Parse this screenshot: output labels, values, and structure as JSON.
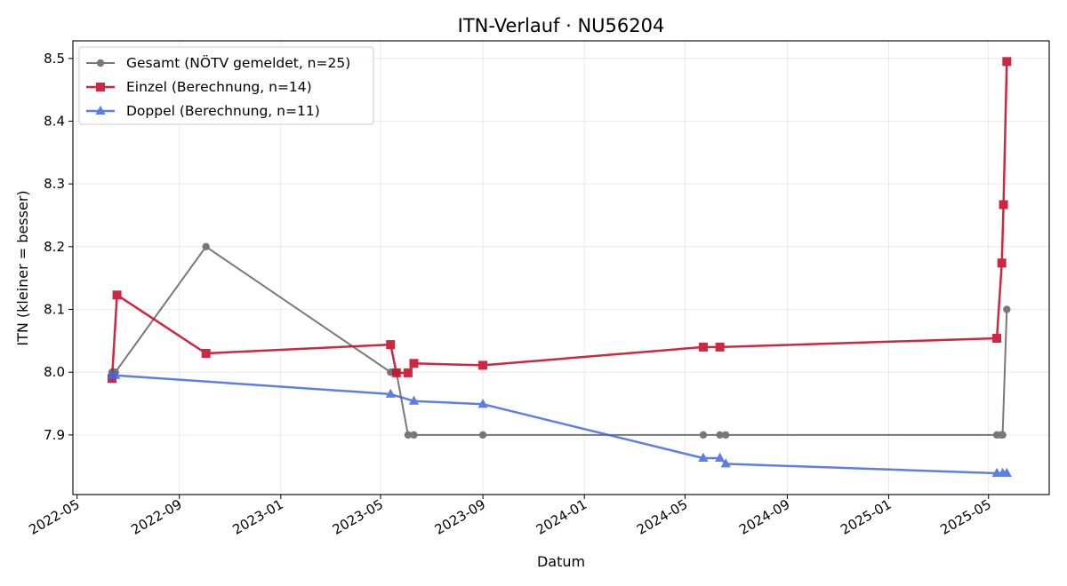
{
  "chart_data": {
    "type": "line",
    "title": "ITN-Verlauf · NU56204",
    "xlabel": "Datum",
    "ylabel": "ITN  (kleiner = besser)",
    "x_type": "date",
    "xlim": [
      "2022-04-26",
      "2025-07-13"
    ],
    "ylim": [
      7.805,
      8.528
    ],
    "grid": true,
    "legend_position": "top-left",
    "x_ticks": [
      "2022-05",
      "2022-09",
      "2023-01",
      "2023-05",
      "2023-09",
      "2024-01",
      "2024-05",
      "2024-09",
      "2025-01",
      "2025-05"
    ],
    "y_ticks": [
      7.9,
      8.0,
      8.1,
      8.2,
      8.3,
      8.4,
      8.5
    ],
    "series": [
      {
        "name": "Gesamt (NÖTV gemeldet, n=25)",
        "color": "#404040",
        "marker": "circle",
        "points": [
          {
            "x": "2022-06-12",
            "y": 8.0
          },
          {
            "x": "2022-06-14",
            "y": 8.0
          },
          {
            "x": "2022-06-16",
            "y": 8.0
          },
          {
            "x": "2022-10-03",
            "y": 8.2
          },
          {
            "x": "2023-05-13",
            "y": 8.0
          },
          {
            "x": "2023-05-20",
            "y": 8.0
          },
          {
            "x": "2023-06-03",
            "y": 7.9
          },
          {
            "x": "2023-06-10",
            "y": 7.9
          },
          {
            "x": "2023-09-01",
            "y": 7.9
          },
          {
            "x": "2024-05-23",
            "y": 7.9
          },
          {
            "x": "2024-06-12",
            "y": 7.9
          },
          {
            "x": "2024-06-19",
            "y": 7.9
          },
          {
            "x": "2025-05-11",
            "y": 7.9
          },
          {
            "x": "2025-05-16",
            "y": 7.9
          },
          {
            "x": "2025-05-18",
            "y": 7.9
          },
          {
            "x": "2025-05-23",
            "y": 8.1
          }
        ]
      },
      {
        "name": "Einzel (Berechnung, n=14)",
        "color": "#c8102e",
        "marker": "square",
        "points": [
          {
            "x": "2022-06-12",
            "y": 7.99
          },
          {
            "x": "2022-06-18",
            "y": 8.123
          },
          {
            "x": "2022-10-03",
            "y": 8.03
          },
          {
            "x": "2023-05-13",
            "y": 8.044
          },
          {
            "x": "2023-05-20",
            "y": 7.999
          },
          {
            "x": "2023-06-03",
            "y": 7.999
          },
          {
            "x": "2023-06-10",
            "y": 8.014
          },
          {
            "x": "2023-09-01",
            "y": 8.011
          },
          {
            "x": "2024-05-23",
            "y": 8.04
          },
          {
            "x": "2024-06-12",
            "y": 8.04
          },
          {
            "x": "2025-05-11",
            "y": 8.054
          },
          {
            "x": "2025-05-17",
            "y": 8.174
          },
          {
            "x": "2025-05-19",
            "y": 8.267
          },
          {
            "x": "2025-05-23",
            "y": 8.495
          }
        ]
      },
      {
        "name": "Doppel (Berechnung, n=11)",
        "color": "#4169e1",
        "marker": "triangle",
        "points": [
          {
            "x": "2022-06-12",
            "y": 7.995
          },
          {
            "x": "2022-06-16",
            "y": 7.995
          },
          {
            "x": "2023-05-13",
            "y": 7.965
          },
          {
            "x": "2023-06-10",
            "y": 7.954
          },
          {
            "x": "2023-09-01",
            "y": 7.949
          },
          {
            "x": "2024-05-23",
            "y": 7.863
          },
          {
            "x": "2024-06-12",
            "y": 7.863
          },
          {
            "x": "2024-06-19",
            "y": 7.854
          },
          {
            "x": "2025-05-11",
            "y": 7.839
          },
          {
            "x": "2025-05-18",
            "y": 7.839
          },
          {
            "x": "2025-05-23",
            "y": 7.839
          }
        ]
      }
    ]
  }
}
